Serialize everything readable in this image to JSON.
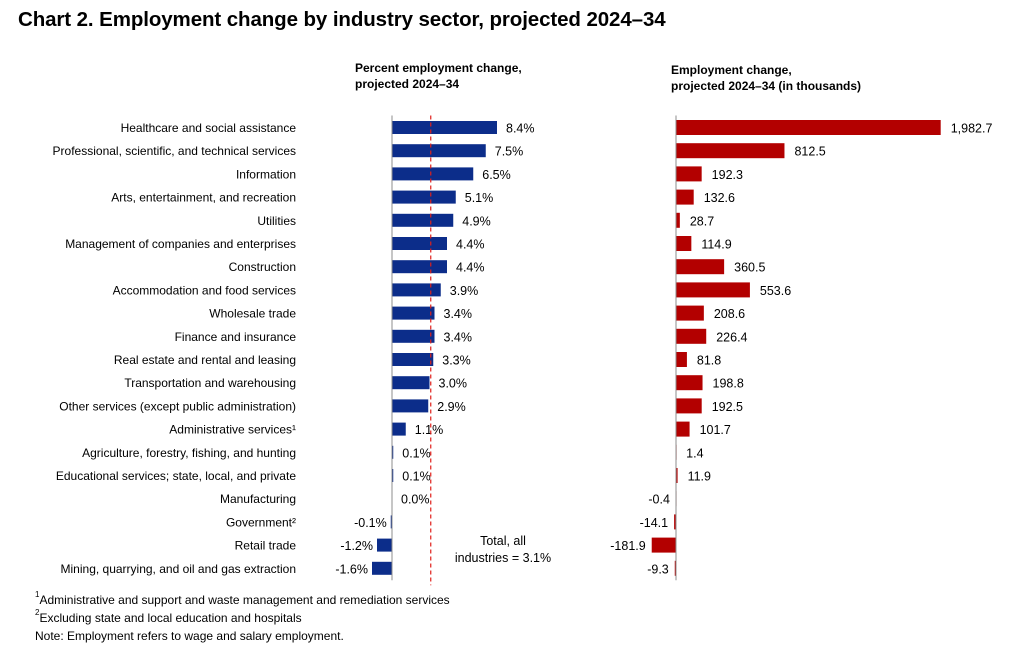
{
  "title": "Chart 2. Employment change by industry sector, projected 2024–34",
  "colors": {
    "percent_bars": "#0c2d8a",
    "numeric_bars": "#b30000",
    "total_line": "#e0201b"
  },
  "chart_data": [
    {
      "type": "bar",
      "orientation": "horizontal",
      "title": "Percent employment change, projected 2024–34",
      "title_lines": [
        "Percent employment change,",
        "projected 2024–34"
      ],
      "categories": [
        "Healthcare and social assistance",
        "Professional, scientific, and technical services",
        "Information",
        "Arts, entertainment, and recreation",
        "Utilities",
        "Management of companies and enterprises",
        "Construction",
        "Accommodation and food services",
        "Wholesale trade",
        "Finance and insurance",
        "Real estate and rental and leasing",
        "Transportation and warehousing",
        "Other services (except public administration)",
        "Administrative services¹",
        "Agriculture, forestry, fishing, and hunting",
        "Educational services; state, local, and private",
        "Manufacturing",
        "Government²",
        "Retail trade",
        "Mining, quarrying, and oil and gas extraction"
      ],
      "values": [
        8.4,
        7.5,
        6.5,
        5.1,
        4.9,
        4.4,
        4.4,
        3.9,
        3.4,
        3.4,
        3.3,
        3.0,
        2.9,
        1.1,
        0.1,
        0.1,
        0.0,
        -0.1,
        -1.2,
        -1.6
      ],
      "value_labels": [
        "8.4%",
        "7.5%",
        "6.5%",
        "5.1%",
        "4.9%",
        "4.4%",
        "4.4%",
        "3.9%",
        "3.4%",
        "3.4%",
        "3.3%",
        "3.0%",
        "2.9%",
        "1.1%",
        "0.1%",
        "0.1%",
        "0.0%",
        "-0.1%",
        "-1.2%",
        "-1.6%"
      ],
      "reference_line": {
        "value": 3.1,
        "label_lines": [
          "Total, all",
          "industries = 3.1%"
        ]
      }
    },
    {
      "type": "bar",
      "orientation": "horizontal",
      "title": "Employment change, projected 2024–34 (in thousands)",
      "title_lines": [
        "Employment change,",
        "projected 2024–34 (in thousands)"
      ],
      "categories": [
        "Healthcare and social assistance",
        "Professional, scientific, and technical services",
        "Information",
        "Arts, entertainment, and recreation",
        "Utilities",
        "Management of companies and enterprises",
        "Construction",
        "Accommodation and food services",
        "Wholesale trade",
        "Finance and insurance",
        "Real estate and rental and leasing",
        "Transportation and warehousing",
        "Other services (except public administration)",
        "Administrative services¹",
        "Agriculture, forestry, fishing, and hunting",
        "Educational services; state, local, and private",
        "Manufacturing",
        "Government²",
        "Retail trade",
        "Mining, quarrying, and oil and gas extraction"
      ],
      "values": [
        1982.7,
        812.5,
        192.3,
        132.6,
        28.7,
        114.9,
        360.5,
        553.6,
        208.6,
        226.4,
        81.8,
        198.8,
        192.5,
        101.7,
        1.4,
        11.9,
        -0.4,
        -14.1,
        -181.9,
        -9.3
      ],
      "value_labels": [
        "1,982.7",
        "812.5",
        "192.3",
        "132.6",
        "28.7",
        "114.9",
        "360.5",
        "553.6",
        "208.6",
        "226.4",
        "81.8",
        "198.8",
        "192.5",
        "101.7",
        "1.4",
        "11.9",
        "-0.4",
        "-14.1",
        "-181.9",
        "-9.3"
      ]
    }
  ],
  "footnotes": {
    "note1_marker": "1",
    "note1": "Administrative and support and waste management and remediation services",
    "note2_marker": "2",
    "note2": "Excluding state and local education and hospitals",
    "note": "Note: Employment refers to wage and salary employment."
  }
}
